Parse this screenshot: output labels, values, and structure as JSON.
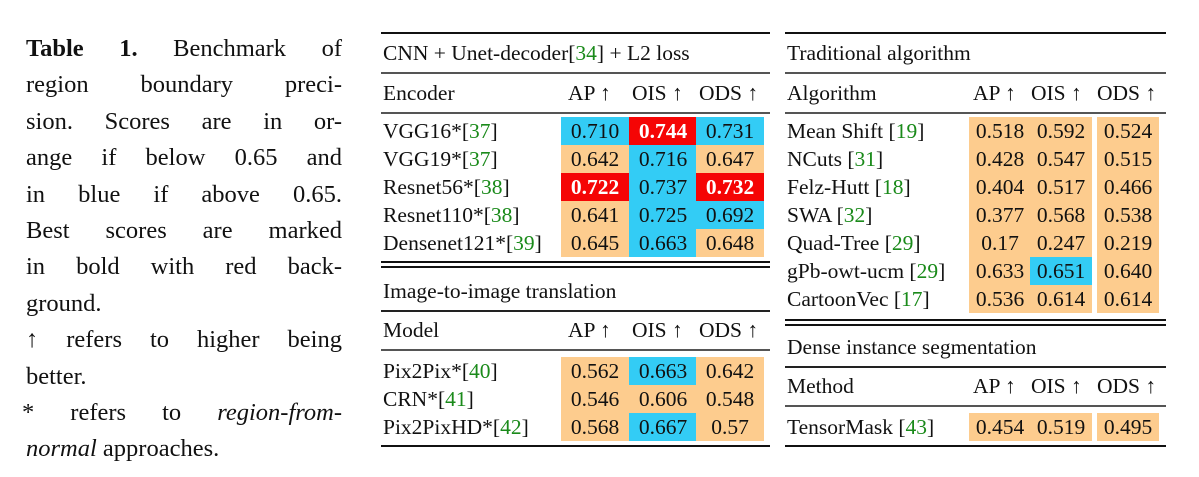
{
  "caption": {
    "label": "Table 1.",
    "lines": [
      "Benchmark of",
      "region boundary preci-",
      "sion. Scores are in or-",
      "ange if below 0.65 and",
      "in blue if above 0.65.",
      "Best scores are marked",
      "in bold with red back-",
      "ground.",
      "↑ refers to higher being",
      "better.",
      "* refers to",
      "region-from-",
      "normal",
      "approaches."
    ]
  },
  "colors": {
    "below": "#fdcc8e",
    "above": "#33ccf5",
    "best": "#f50505",
    "citation": "#1a8a1a"
  },
  "columns": [
    "AP ↑",
    "OIS ↑",
    "ODS ↑"
  ],
  "tables": [
    {
      "title_pre": "CNN + Unet-decoder[",
      "title_cite": "34",
      "title_post": "] + L2 loss",
      "header": "Encoder",
      "rows": [
        {
          "name": "VGG16*[",
          "cite": "37",
          "close": "]",
          "values": [
            "0.710",
            "0.744",
            "0.731"
          ],
          "styles": [
            "blue",
            "red",
            "blue"
          ]
        },
        {
          "name": "VGG19*[",
          "cite": "37",
          "close": "]",
          "values": [
            "0.642",
            "0.716",
            "0.647"
          ],
          "styles": [
            "orange",
            "blue",
            "orange"
          ]
        },
        {
          "name": "Resnet56*[",
          "cite": "38",
          "close": "]",
          "values": [
            "0.722",
            "0.737",
            "0.732"
          ],
          "styles": [
            "red",
            "blue",
            "red"
          ]
        },
        {
          "name": "Resnet110*[",
          "cite": "38",
          "close": "]",
          "values": [
            "0.641",
            "0.725",
            "0.692"
          ],
          "styles": [
            "orange",
            "blue",
            "blue"
          ]
        },
        {
          "name": "Densenet121*[",
          "cite": "39",
          "close": "]",
          "values": [
            "0.645",
            "0.663",
            "0.648"
          ],
          "styles": [
            "orange",
            "blue",
            "orange"
          ]
        }
      ]
    },
    {
      "title": "Image-to-image translation",
      "header": "Model",
      "rows": [
        {
          "name": "Pix2Pix*[",
          "cite": "40",
          "close": "]",
          "values": [
            "0.562",
            "0.663",
            "0.642"
          ],
          "styles": [
            "orange",
            "blue",
            "orange"
          ]
        },
        {
          "name": "CRN*[",
          "cite": "41",
          "close": "]",
          "values": [
            "0.546",
            "0.606",
            "0.548"
          ],
          "styles": [
            "orange",
            "orange",
            "orange"
          ]
        },
        {
          "name": "Pix2PixHD*[",
          "cite": "42",
          "close": "]",
          "values": [
            "0.568",
            "0.667",
            "0.57"
          ],
          "styles": [
            "orange",
            "blue",
            "orange"
          ]
        }
      ]
    },
    {
      "title": "Traditional algorithm",
      "header": "Algorithm",
      "rows": [
        {
          "name": "Mean Shift [",
          "cite": "19",
          "close": "]",
          "values": [
            "0.518",
            "0.592",
            "0.524"
          ],
          "styles": [
            "orange",
            "orange",
            "orange"
          ]
        },
        {
          "name": "NCuts [",
          "cite": "31",
          "close": "]",
          "values": [
            "0.428",
            "0.547",
            "0.515"
          ],
          "styles": [
            "orange",
            "orange",
            "orange"
          ]
        },
        {
          "name": "Felz-Hutt [",
          "cite": "18",
          "close": "]",
          "values": [
            "0.404",
            "0.517",
            "0.466"
          ],
          "styles": [
            "orange",
            "orange",
            "orange"
          ]
        },
        {
          "name": "SWA [",
          "cite": "32",
          "close": "]",
          "values": [
            "0.377",
            "0.568",
            "0.538"
          ],
          "styles": [
            "orange",
            "orange",
            "orange"
          ]
        },
        {
          "name": "Quad-Tree [",
          "cite": "29",
          "close": "]",
          "values": [
            "0.17",
            "0.247",
            "0.219"
          ],
          "styles": [
            "orange",
            "orange",
            "orange"
          ]
        },
        {
          "name": "gPb-owt-ucm [",
          "cite": "29",
          "close": "]",
          "values": [
            "0.633",
            "0.651",
            "0.640"
          ],
          "styles": [
            "orange",
            "blue",
            "orange"
          ]
        },
        {
          "name": "CartoonVec [",
          "cite": "17",
          "close": "]",
          "values": [
            "0.536",
            "0.614",
            "0.614"
          ],
          "styles": [
            "orange",
            "orange",
            "orange"
          ]
        }
      ]
    },
    {
      "title": "Dense instance segmentation",
      "header": "Method",
      "rows": [
        {
          "name": "TensorMask [",
          "cite": "43",
          "close": "]",
          "values": [
            "0.454",
            "0.519",
            "0.495"
          ],
          "styles": [
            "orange",
            "orange",
            "orange"
          ]
        }
      ]
    }
  ]
}
